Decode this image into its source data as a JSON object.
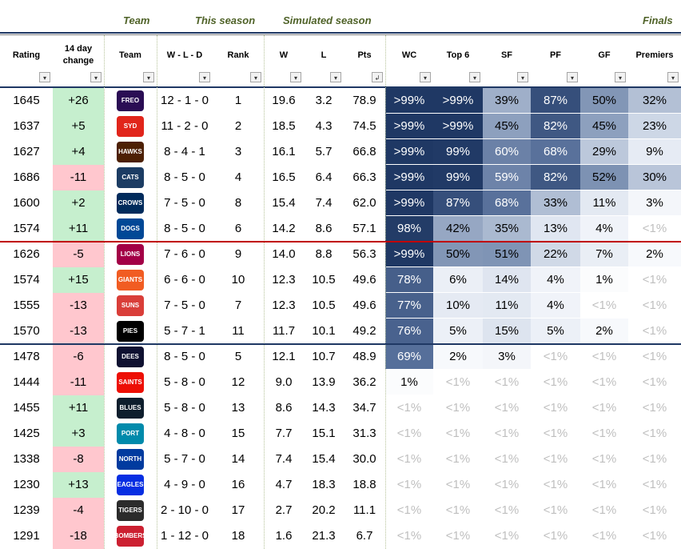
{
  "group_headers": {
    "team": "Team",
    "this_season": "This season",
    "simulated_season": "Simulated season",
    "finals": "Finals"
  },
  "columns": [
    {
      "key": "rating",
      "label": "Rating"
    },
    {
      "key": "change",
      "label": "14 day change"
    },
    {
      "key": "team",
      "label": "Team"
    },
    {
      "key": "wld",
      "label": "W - L - D"
    },
    {
      "key": "rank",
      "label": "Rank"
    },
    {
      "key": "w",
      "label": "W"
    },
    {
      "key": "l",
      "label": "L"
    },
    {
      "key": "pts",
      "label": "Pts"
    },
    {
      "key": "wc",
      "label": "WC"
    },
    {
      "key": "top6",
      "label": "Top 6"
    },
    {
      "key": "sf",
      "label": "SF"
    },
    {
      "key": "pf",
      "label": "PF"
    },
    {
      "key": "gf",
      "label": "GF"
    },
    {
      "key": "premiers",
      "label": "Premiers"
    }
  ],
  "filter_icon": "dropdown-arrow-icon",
  "sort_icon": "sort-descending-icon",
  "colors": {
    "positive_change": "#c6efce",
    "negative_change": "#ffc7ce",
    "top8_line": "#c00000",
    "top10_line": "#1f3864",
    "heat_max": "#1f3864",
    "heat_min": "#ffffff"
  },
  "rows": [
    {
      "rating": "1645",
      "change": "+26",
      "team": "Fremantle Dockers",
      "logo_text": "FREO",
      "logo_color": "#2a0d54",
      "wld": "12 - 1 - 0",
      "rank": "1",
      "w": "19.6",
      "l": "3.2",
      "pts": "78.9",
      "wc": ">99%",
      "top6": ">99%",
      "sf": "39%",
      "pf": "87%",
      "gf": "50%",
      "premiers": "32%"
    },
    {
      "rating": "1637",
      "change": "+5",
      "team": "Sydney Swans",
      "logo_text": "SYD",
      "logo_color": "#e1251b",
      "wld": "11 - 2 - 0",
      "rank": "2",
      "w": "18.5",
      "l": "4.3",
      "pts": "74.5",
      "wc": ">99%",
      "top6": ">99%",
      "sf": "45%",
      "pf": "82%",
      "gf": "45%",
      "premiers": "23%"
    },
    {
      "rating": "1627",
      "change": "+4",
      "team": "Hawthorn Hawks",
      "logo_text": "HAWKS",
      "logo_color": "#4d2004",
      "wld": "8 - 4 - 1",
      "rank": "3",
      "w": "16.1",
      "l": "5.7",
      "pts": "66.8",
      "wc": ">99%",
      "top6": "99%",
      "sf": "60%",
      "pf": "68%",
      "gf": "29%",
      "premiers": "9%"
    },
    {
      "rating": "1686",
      "change": "-11",
      "team": "Geelong Cats",
      "logo_text": "CATS",
      "logo_color": "#1c3c63",
      "wld": "8 - 5 - 0",
      "rank": "4",
      "w": "16.5",
      "l": "6.4",
      "pts": "66.3",
      "wc": ">99%",
      "top6": "99%",
      "sf": "59%",
      "pf": "82%",
      "gf": "52%",
      "premiers": "30%"
    },
    {
      "rating": "1600",
      "change": "+2",
      "team": "Adelaide Crows",
      "logo_text": "CROWS",
      "logo_color": "#002b5c",
      "wld": "7 - 5 - 0",
      "rank": "8",
      "w": "15.4",
      "l": "7.4",
      "pts": "62.0",
      "wc": ">99%",
      "top6": "87%",
      "sf": "68%",
      "pf": "33%",
      "gf": "11%",
      "premiers": "3%"
    },
    {
      "rating": "1574",
      "change": "+11",
      "team": "Western Bulldogs",
      "logo_text": "DOGS",
      "logo_color": "#014896",
      "wld": "8 - 5 - 0",
      "rank": "6",
      "w": "14.2",
      "l": "8.6",
      "pts": "57.1",
      "wc": "98%",
      "top6": "42%",
      "sf": "35%",
      "pf": "13%",
      "gf": "4%",
      "premiers": "<1%"
    },
    {
      "rating": "1626",
      "change": "-5",
      "team": "Brisbane Lions",
      "logo_text": "LIONS",
      "logo_color": "#a30046",
      "wld": "7 - 6 - 0",
      "rank": "9",
      "w": "14.0",
      "l": "8.8",
      "pts": "56.3",
      "wc": ">99%",
      "top6": "50%",
      "sf": "51%",
      "pf": "22%",
      "gf": "7%",
      "premiers": "2%"
    },
    {
      "rating": "1574",
      "change": "+15",
      "team": "GWS Giants",
      "logo_text": "GIANTS",
      "logo_color": "#f15c22",
      "wld": "6 - 6 - 0",
      "rank": "10",
      "w": "12.3",
      "l": "10.5",
      "pts": "49.6",
      "wc": "78%",
      "top6": "6%",
      "sf": "14%",
      "pf": "4%",
      "gf": "1%",
      "premiers": "<1%"
    },
    {
      "rating": "1555",
      "change": "-13",
      "team": "Gold Coast Suns",
      "logo_text": "SUNS",
      "logo_color": "#d93e39",
      "wld": "7 - 5 - 0",
      "rank": "7",
      "w": "12.3",
      "l": "10.5",
      "pts": "49.6",
      "wc": "77%",
      "top6": "10%",
      "sf": "11%",
      "pf": "4%",
      "gf": "<1%",
      "premiers": "<1%"
    },
    {
      "rating": "1570",
      "change": "-13",
      "team": "Collingwood Magpies",
      "logo_text": "PIES",
      "logo_color": "#000000",
      "wld": "5 - 7 - 1",
      "rank": "11",
      "w": "11.7",
      "l": "10.1",
      "pts": "49.2",
      "wc": "76%",
      "top6": "5%",
      "sf": "15%",
      "pf": "5%",
      "gf": "2%",
      "premiers": "<1%"
    },
    {
      "rating": "1478",
      "change": "-6",
      "team": "Melbourne Demons",
      "logo_text": "DEES",
      "logo_color": "#0f1131",
      "wld": "8 - 5 - 0",
      "rank": "5",
      "w": "12.1",
      "l": "10.7",
      "pts": "48.9",
      "wc": "69%",
      "top6": "2%",
      "sf": "3%",
      "pf": "<1%",
      "gf": "<1%",
      "premiers": "<1%"
    },
    {
      "rating": "1444",
      "change": "-11",
      "team": "St Kilda Saints",
      "logo_text": "SAINTS",
      "logo_color": "#ed0f05",
      "wld": "5 - 8 - 0",
      "rank": "12",
      "w": "9.0",
      "l": "13.9",
      "pts": "36.2",
      "wc": "1%",
      "top6": "<1%",
      "sf": "<1%",
      "pf": "<1%",
      "gf": "<1%",
      "premiers": "<1%"
    },
    {
      "rating": "1455",
      "change": "+11",
      "team": "Carlton Blues",
      "logo_text": "BLUES",
      "logo_color": "#0e1e2d",
      "wld": "5 - 8 - 0",
      "rank": "13",
      "w": "8.6",
      "l": "14.3",
      "pts": "34.7",
      "wc": "<1%",
      "top6": "<1%",
      "sf": "<1%",
      "pf": "<1%",
      "gf": "<1%",
      "premiers": "<1%"
    },
    {
      "rating": "1425",
      "change": "+3",
      "team": "Port Adelaide",
      "logo_text": "PORT",
      "logo_color": "#008aab",
      "wld": "4 - 8 - 0",
      "rank": "15",
      "w": "7.7",
      "l": "15.1",
      "pts": "31.3",
      "wc": "<1%",
      "top6": "<1%",
      "sf": "<1%",
      "pf": "<1%",
      "gf": "<1%",
      "premiers": "<1%"
    },
    {
      "rating": "1338",
      "change": "-8",
      "team": "North Melbourne",
      "logo_text": "NORTH",
      "logo_color": "#013b9f",
      "wld": "5 - 7 - 0",
      "rank": "14",
      "w": "7.4",
      "l": "15.4",
      "pts": "30.0",
      "wc": "<1%",
      "top6": "<1%",
      "sf": "<1%",
      "pf": "<1%",
      "gf": "<1%",
      "premiers": "<1%"
    },
    {
      "rating": "1230",
      "change": "+13",
      "team": "West Coast Eagles",
      "logo_text": "EAGLES",
      "logo_color": "#062ee2",
      "wld": "4 - 9 - 0",
      "rank": "16",
      "w": "4.7",
      "l": "18.3",
      "pts": "18.8",
      "wc": "<1%",
      "top6": "<1%",
      "sf": "<1%",
      "pf": "<1%",
      "gf": "<1%",
      "premiers": "<1%"
    },
    {
      "rating": "1239",
      "change": "-4",
      "team": "Richmond Tigers",
      "logo_text": "TIGERS",
      "logo_color": "#2b2b2b",
      "wld": "2 - 10 - 0",
      "rank": "17",
      "w": "2.7",
      "l": "20.2",
      "pts": "11.1",
      "wc": "<1%",
      "top6": "<1%",
      "sf": "<1%",
      "pf": "<1%",
      "gf": "<1%",
      "premiers": "<1%"
    },
    {
      "rating": "1291",
      "change": "-18",
      "team": "Essendon Bombers",
      "logo_text": "BOMBERS",
      "logo_color": "#cc2031",
      "wld": "1 - 12 - 0",
      "rank": "18",
      "w": "1.6",
      "l": "21.3",
      "pts": "6.7",
      "wc": "<1%",
      "top6": "<1%",
      "sf": "<1%",
      "pf": "<1%",
      "gf": "<1%",
      "premiers": "<1%"
    }
  ]
}
